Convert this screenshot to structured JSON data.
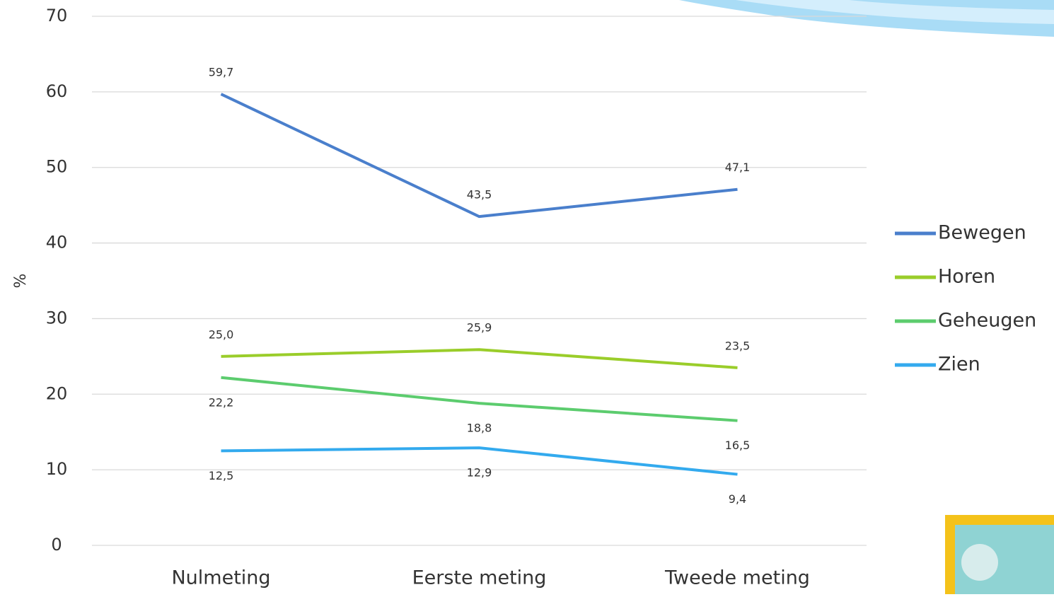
{
  "chart_data": {
    "type": "line",
    "y_label": "%",
    "categories": [
      "Nulmeting",
      "Eerste meting",
      "Tweede meting"
    ],
    "series": [
      {
        "name": "Bewegen",
        "color": "#4a7fcc",
        "values": [
          59.7,
          43.5,
          47.1
        ],
        "value_labels": [
          "59,7",
          "43,5",
          "47,1"
        ]
      },
      {
        "name": "Horen",
        "color": "#9acd2a",
        "values": [
          25.0,
          25.9,
          23.5
        ],
        "value_labels": [
          "25,0",
          "25,9",
          "23,5"
        ]
      },
      {
        "name": "Geheugen",
        "color": "#5ccc6e",
        "values": [
          22.2,
          18.8,
          16.5
        ],
        "value_labels": [
          "22,2",
          "18,8",
          "16,5"
        ]
      },
      {
        "name": "Zien",
        "color": "#33aaee",
        "values": [
          12.5,
          12.9,
          9.4
        ],
        "value_labels": [
          "12,5",
          "12,9",
          "9,4"
        ]
      }
    ],
    "ylim": [
      0,
      70
    ],
    "yticks": [
      0,
      10,
      20,
      30,
      40,
      50,
      60,
      70
    ],
    "grid": true,
    "legend": "right"
  }
}
